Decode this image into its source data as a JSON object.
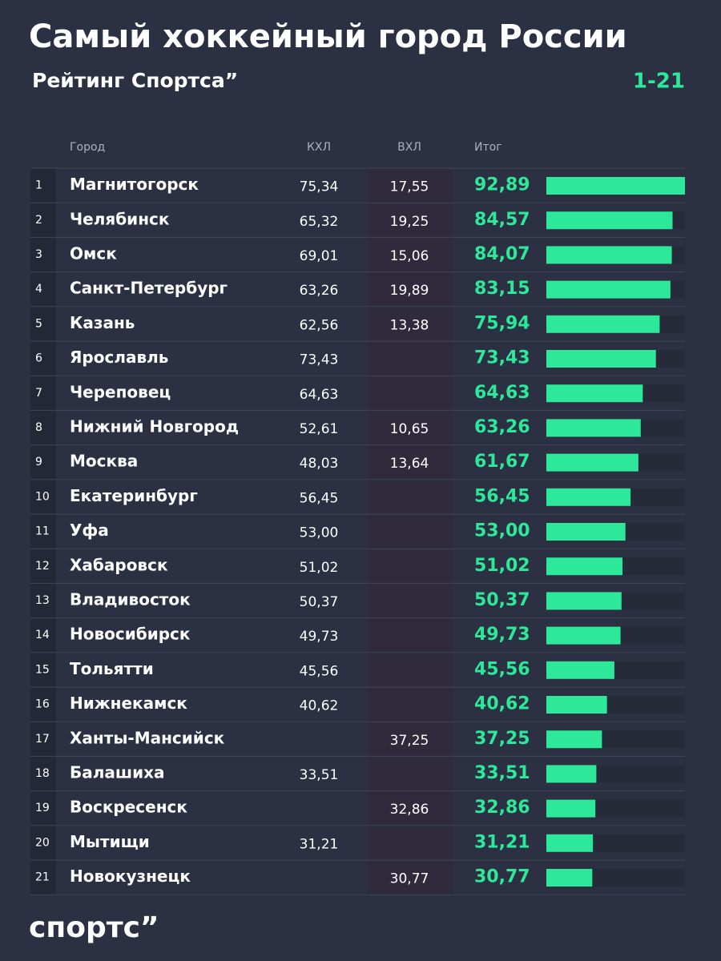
{
  "header": {
    "title": "Самый хоккейный город России",
    "subtitle": "Рейтинг Спортса”",
    "range": "1-21"
  },
  "table": {
    "columns": [
      "Город",
      "КХЛ",
      "ВХЛ",
      "Итог"
    ],
    "rows": [
      {
        "rank": 1,
        "city": "Магнитогорск",
        "khl": "75,34",
        "vhl": "17,55",
        "total": 92.89,
        "total_label": "92,89"
      },
      {
        "rank": 2,
        "city": "Челябинск",
        "khl": "65,32",
        "vhl": "19,25",
        "total": 84.57,
        "total_label": "84,57"
      },
      {
        "rank": 3,
        "city": "Омск",
        "khl": "69,01",
        "vhl": "15,06",
        "total": 84.07,
        "total_label": "84,07"
      },
      {
        "rank": 4,
        "city": "Санкт-Петербург",
        "khl": "63,26",
        "vhl": "19,89",
        "total": 83.15,
        "total_label": "83,15"
      },
      {
        "rank": 5,
        "city": "Казань",
        "khl": "62,56",
        "vhl": "13,38",
        "total": 75.94,
        "total_label": "75,94"
      },
      {
        "rank": 6,
        "city": "Ярославль",
        "khl": "73,43",
        "vhl": null,
        "total": 73.43,
        "total_label": "73,43"
      },
      {
        "rank": 7,
        "city": "Череповец",
        "khl": "64,63",
        "vhl": null,
        "total": 64.63,
        "total_label": "64,63"
      },
      {
        "rank": 8,
        "city": "Нижний Новгород",
        "khl": "52,61",
        "vhl": "10,65",
        "total": 63.26,
        "total_label": "63,26"
      },
      {
        "rank": 9,
        "city": "Москва",
        "khl": "48,03",
        "vhl": "13,64",
        "total": 61.67,
        "total_label": "61,67"
      },
      {
        "rank": 10,
        "city": "Екатеринбург",
        "khl": "56,45",
        "vhl": null,
        "total": 56.45,
        "total_label": "56,45"
      },
      {
        "rank": 11,
        "city": "Уфа",
        "khl": "53,00",
        "vhl": null,
        "total": 53.0,
        "total_label": "53,00"
      },
      {
        "rank": 12,
        "city": "Хабаровск",
        "khl": "51,02",
        "vhl": null,
        "total": 51.02,
        "total_label": "51,02"
      },
      {
        "rank": 13,
        "city": "Владивосток",
        "khl": "50,37",
        "vhl": null,
        "total": 50.37,
        "total_label": "50,37"
      },
      {
        "rank": 14,
        "city": "Новосибирск",
        "khl": "49,73",
        "vhl": null,
        "total": 49.73,
        "total_label": "49,73"
      },
      {
        "rank": 15,
        "city": "Тольятти",
        "khl": "45,56",
        "vhl": null,
        "total": 45.56,
        "total_label": "45,56"
      },
      {
        "rank": 16,
        "city": "Нижнекамск",
        "khl": "40,62",
        "vhl": null,
        "total": 40.62,
        "total_label": "40,62"
      },
      {
        "rank": 17,
        "city": "Ханты-Мансийск",
        "khl": null,
        "vhl": "37,25",
        "total": 37.25,
        "total_label": "37,25"
      },
      {
        "rank": 18,
        "city": "Балашиха",
        "khl": "33,51",
        "vhl": null,
        "total": 33.51,
        "total_label": "33,51"
      },
      {
        "rank": 19,
        "city": "Воскресенск",
        "khl": null,
        "vhl": "32,86",
        "total": 32.86,
        "total_label": "32,86"
      },
      {
        "rank": 20,
        "city": "Мытищи",
        "khl": "31,21",
        "vhl": null,
        "total": 31.21,
        "total_label": "31,21"
      },
      {
        "rank": 21,
        "city": "Новокузнецк",
        "khl": null,
        "vhl": "30,77",
        "total": 30.77,
        "total_label": "30,77"
      }
    ]
  },
  "footer": {
    "logo": "спортс”"
  }
}
